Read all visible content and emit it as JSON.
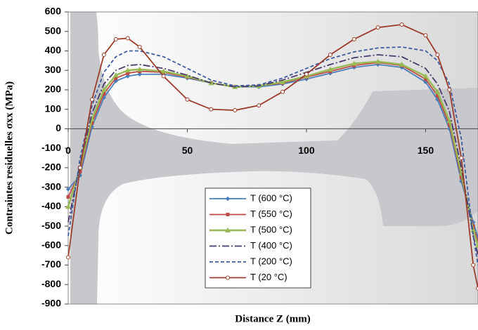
{
  "chart_data": {
    "type": "line",
    "xlabel": "Distance Z  (mm)",
    "ylabel": "Contraintes residuelles σxx (MPa)",
    "x": [
      0,
      5,
      10,
      15,
      20,
      25,
      30,
      40,
      50,
      60,
      70,
      80,
      90,
      100,
      110,
      120,
      130,
      140,
      150,
      155,
      160,
      165,
      170,
      172
    ],
    "xlim": [
      0,
      172
    ],
    "ylim": [
      -900,
      600
    ],
    "xticks": [
      0,
      50,
      100,
      150
    ],
    "yticks": [
      -900,
      -800,
      -700,
      -600,
      -500,
      -400,
      -300,
      -200,
      -100,
      0,
      100,
      200,
      300,
      400,
      500,
      600
    ],
    "series": [
      {
        "name": "T (600 °C)",
        "color": "#4a7ebb",
        "dash": "solid",
        "marker": "diamond",
        "values": [
          -310,
          -240,
          10,
          160,
          245,
          270,
          280,
          280,
          260,
          235,
          215,
          215,
          230,
          255,
          285,
          315,
          330,
          315,
          240,
          150,
          0,
          -270,
          -480,
          -560
        ]
      },
      {
        "name": "T (550 °C)",
        "color": "#be4b48",
        "dash": "solid",
        "marker": "square",
        "values": [
          -350,
          -220,
          30,
          180,
          260,
          285,
          295,
          290,
          265,
          235,
          215,
          220,
          235,
          265,
          295,
          325,
          340,
          325,
          255,
          170,
          20,
          -250,
          -500,
          -580
        ]
      },
      {
        "name": "T (500 °C)",
        "color": "#98b954",
        "dash": "solid",
        "marker": "triangle",
        "values": [
          -400,
          -200,
          50,
          200,
          275,
          300,
          305,
          295,
          270,
          235,
          215,
          220,
          240,
          270,
          305,
          335,
          345,
          330,
          270,
          190,
          40,
          -230,
          -520,
          -600
        ]
      },
      {
        "name": "T (400 °C)",
        "color": "#4b3a6e",
        "dash": "dash-dot",
        "marker": "none",
        "values": [
          -480,
          -180,
          80,
          230,
          300,
          325,
          330,
          310,
          275,
          235,
          215,
          220,
          250,
          290,
          330,
          365,
          380,
          370,
          310,
          230,
          90,
          -200,
          -550,
          -650
        ]
      },
      {
        "name": "T (200 °C)",
        "color": "#3d5c9e",
        "dash": "dashed",
        "marker": "none",
        "values": [
          -550,
          -150,
          120,
          290,
          370,
          400,
          400,
          370,
          310,
          250,
          220,
          225,
          260,
          310,
          360,
          395,
          415,
          420,
          400,
          350,
          230,
          -50,
          -550,
          -700
        ]
      },
      {
        "name": "T (20 °C)",
        "color": "#9c3c2b",
        "dash": "solid",
        "marker": "circle",
        "values": [
          -660,
          -200,
          150,
          380,
          460,
          465,
          420,
          270,
          150,
          100,
          95,
          120,
          190,
          280,
          380,
          460,
          520,
          535,
          480,
          380,
          200,
          -150,
          -700,
          -820
        ]
      }
    ]
  }
}
